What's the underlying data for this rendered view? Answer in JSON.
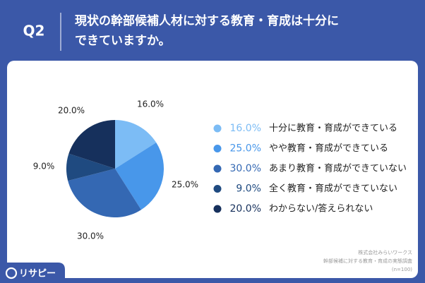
{
  "question": "Q2",
  "chart_data": {
    "type": "pie",
    "title": [
      "現状の幹部候補人材に対する教育・育成は十分に",
      "できていますか。"
    ],
    "categories": [
      "十分に教育・育成ができている",
      "やや教育・育成ができている",
      "あまり教育・育成ができていない",
      "全く教育・育成ができていない",
      "わからない/答えられない"
    ],
    "values": [
      16,
      25,
      30,
      9,
      20
    ],
    "value_labels": [
      "16.0%",
      "25.0%",
      "30.0%",
      "9.0%",
      "20.0%"
    ],
    "colors": [
      "#7cbcf5",
      "#4897ea",
      "#3468b3",
      "#1f4a80",
      "#16305c"
    ]
  },
  "source": [
    "株式会社みらいワークス",
    "幹部候補に対する教育・育成の実態調査",
    "(n=100)"
  ],
  "logo": "リサピー"
}
